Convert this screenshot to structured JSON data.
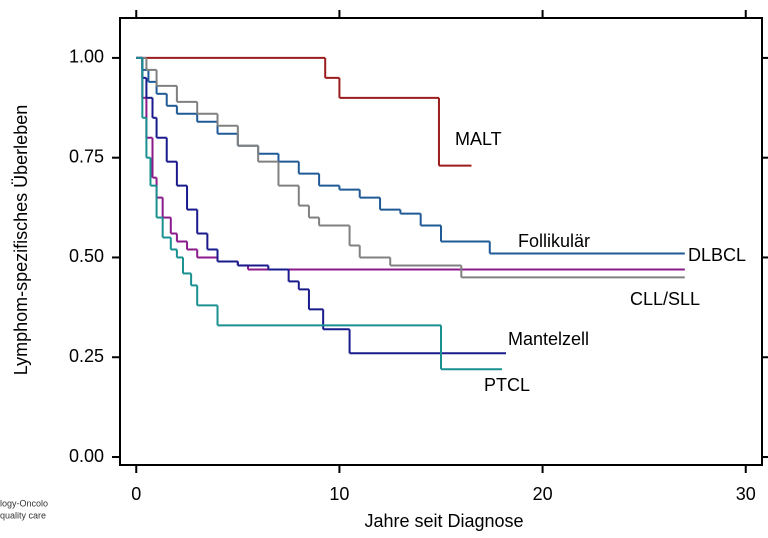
{
  "chart_data": {
    "type": "step",
    "xlabel": "Jahre seit Diagnose",
    "ylabel": "Lymphom-spezifisches Überleben",
    "watermark": [
      "logy-Oncolo",
      "quality care"
    ],
    "xlim": [
      -0.8,
      30.8
    ],
    "xticks": [
      0,
      10,
      20,
      30
    ],
    "ylim": [
      -0.02,
      1.1
    ],
    "yticks": [
      {
        "value": 0,
        "label": "0.00"
      },
      {
        "value": 0.25,
        "label": "0.25"
      },
      {
        "value": 0.5,
        "label": "0.50"
      },
      {
        "value": 0.75,
        "label": "0.75"
      },
      {
        "value": 1,
        "label": "1.00"
      }
    ],
    "series": [
      {
        "name": "MALT",
        "color": "#9b1c1c",
        "x": [
          0,
          9.3,
          10.0,
          14.9,
          16.5
        ],
        "values": [
          1.0,
          0.95,
          0.9,
          0.73,
          0.73
        ]
      },
      {
        "name": "Follikulär",
        "color": "#1f5a96",
        "x": [
          0,
          0.3,
          0.6,
          1,
          1.5,
          2,
          3,
          4,
          5,
          6,
          7,
          8,
          9,
          10,
          11,
          12,
          13,
          14,
          15,
          17.4,
          27
        ],
        "values": [
          1.0,
          0.97,
          0.94,
          0.91,
          0.88,
          0.86,
          0.84,
          0.81,
          0.78,
          0.76,
          0.74,
          0.71,
          0.68,
          0.67,
          0.65,
          0.62,
          0.61,
          0.58,
          0.54,
          0.51,
          0.51
        ]
      },
      {
        "name": "DLBCL",
        "color": "#8b1a8b",
        "x": [
          0,
          0.3,
          0.5,
          0.8,
          1.0,
          1.3,
          1.7,
          2,
          2.5,
          3,
          4,
          5,
          5.5,
          27
        ],
        "values": [
          1.0,
          0.9,
          0.8,
          0.7,
          0.65,
          0.6,
          0.56,
          0.54,
          0.52,
          0.5,
          0.49,
          0.48,
          0.47,
          0.47
        ]
      },
      {
        "name": "CLL/SLL",
        "color": "#808080",
        "x": [
          0,
          0.5,
          1,
          2,
          3,
          4,
          5,
          6,
          7,
          8,
          8.5,
          9,
          10.5,
          11,
          12.5,
          16,
          27
        ],
        "values": [
          1.0,
          0.97,
          0.93,
          0.89,
          0.86,
          0.83,
          0.78,
          0.74,
          0.68,
          0.63,
          0.6,
          0.58,
          0.53,
          0.5,
          0.48,
          0.45,
          0.45
        ]
      },
      {
        "name": "Mantelzell",
        "color": "#1a1a8c",
        "x": [
          0,
          0.3,
          0.5,
          0.8,
          1,
          1.5,
          2,
          2.5,
          3,
          3.5,
          4,
          5,
          6.5,
          7.5,
          8,
          8.5,
          9.2,
          10.5,
          18.2
        ],
        "values": [
          1.0,
          0.95,
          0.9,
          0.85,
          0.8,
          0.74,
          0.68,
          0.62,
          0.56,
          0.52,
          0.49,
          0.48,
          0.47,
          0.44,
          0.42,
          0.37,
          0.32,
          0.26,
          0.26
        ]
      },
      {
        "name": "PTCL",
        "color": "#1a9090",
        "x": [
          0,
          0.3,
          0.5,
          0.7,
          1,
          1.3,
          1.7,
          2,
          2.3,
          2.7,
          3,
          4,
          15,
          18
        ],
        "values": [
          1.0,
          0.85,
          0.75,
          0.68,
          0.6,
          0.55,
          0.52,
          0.5,
          0.46,
          0.43,
          0.38,
          0.33,
          0.22,
          0.22
        ]
      }
    ]
  }
}
